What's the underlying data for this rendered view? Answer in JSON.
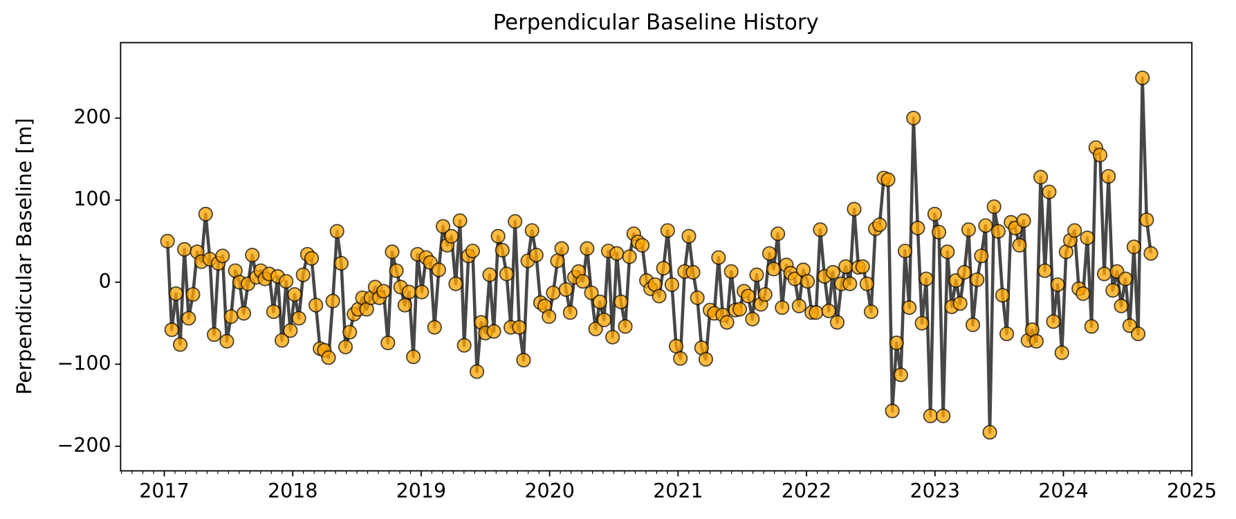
{
  "chart_data": {
    "type": "line",
    "title": "Perpendicular Baseline History",
    "y_label": "Perpendicular Baseline [m]",
    "marker_color": "#ffa500",
    "line_color": "#333333",
    "xlim": [
      2016.66,
      2025
    ],
    "xticks": [
      2017,
      2018,
      2019,
      2020,
      2021,
      2022,
      2023,
      2024,
      2025
    ],
    "ylim": [
      -230,
      292
    ],
    "yticks": [
      {
        "value": -200,
        "label": "−200"
      },
      {
        "value": -100,
        "label": "−100"
      },
      0,
      100,
      200
    ],
    "x": [
      2017.025,
      2017.058,
      2017.091,
      2017.124,
      2017.157,
      2017.19,
      2017.223,
      2017.256,
      2017.289,
      2017.322,
      2017.355,
      2017.388,
      2017.421,
      2017.454,
      2017.487,
      2017.52,
      2017.553,
      2017.586,
      2017.619,
      2017.652,
      2017.685,
      2017.718,
      2017.751,
      2017.784,
      2017.817,
      2017.85,
      2017.883,
      2017.916,
      2017.949,
      2017.982,
      2018.015,
      2018.048,
      2018.081,
      2018.114,
      2018.147,
      2018.18,
      2018.213,
      2018.246,
      2018.279,
      2018.312,
      2018.345,
      2018.378,
      2018.411,
      2018.444,
      2018.477,
      2018.51,
      2018.543,
      2018.576,
      2018.609,
      2018.642,
      2018.675,
      2018.708,
      2018.741,
      2018.774,
      2018.807,
      2018.84,
      2018.873,
      2018.906,
      2018.939,
      2018.972,
      2019.005,
      2019.038,
      2019.071,
      2019.104,
      2019.137,
      2019.17,
      2019.203,
      2019.236,
      2019.269,
      2019.302,
      2019.335,
      2019.368,
      2019.401,
      2019.434,
      2019.467,
      2019.5,
      2019.533,
      2019.566,
      2019.599,
      2019.632,
      2019.665,
      2019.698,
      2019.731,
      2019.764,
      2019.797,
      2019.83,
      2019.863,
      2019.896,
      2019.929,
      2019.962,
      2019.995,
      2020.028,
      2020.061,
      2020.094,
      2020.127,
      2020.16,
      2020.193,
      2020.226,
      2020.259,
      2020.292,
      2020.325,
      2020.358,
      2020.391,
      2020.424,
      2020.457,
      2020.49,
      2020.523,
      2020.556,
      2020.589,
      2020.622,
      2020.655,
      2020.688,
      2020.721,
      2020.754,
      2020.787,
      2020.82,
      2020.853,
      2020.886,
      2020.919,
      2020.952,
      2020.985,
      2021.018,
      2021.051,
      2021.084,
      2021.117,
      2021.15,
      2021.183,
      2021.216,
      2021.249,
      2021.282,
      2021.315,
      2021.348,
      2021.381,
      2021.414,
      2021.447,
      2021.48,
      2021.513,
      2021.546,
      2021.579,
      2021.612,
      2021.645,
      2021.678,
      2021.711,
      2021.744,
      2021.777,
      2021.81,
      2021.843,
      2021.876,
      2021.909,
      2021.942,
      2021.975,
      2022.008,
      2022.041,
      2022.074,
      2022.107,
      2022.14,
      2022.173,
      2022.206,
      2022.239,
      2022.272,
      2022.305,
      2022.338,
      2022.371,
      2022.404,
      2022.437,
      2022.47,
      2022.503,
      2022.536,
      2022.569,
      2022.602,
      2022.635,
      2022.668,
      2022.701,
      2022.734,
      2022.767,
      2022.8,
      2022.833,
      2022.866,
      2022.899,
      2022.932,
      2022.965,
      2022.998,
      2023.031,
      2023.064,
      2023.097,
      2023.13,
      2023.163,
      2023.196,
      2023.229,
      2023.262,
      2023.295,
      2023.328,
      2023.361,
      2023.394,
      2023.427,
      2023.46,
      2023.493,
      2023.526,
      2023.559,
      2023.592,
      2023.625,
      2023.658,
      2023.691,
      2023.724,
      2023.757,
      2023.79,
      2023.823,
      2023.856,
      2023.889,
      2023.922,
      2023.955,
      2023.988,
      2024.021,
      2024.054,
      2024.087,
      2024.12,
      2024.153,
      2024.186,
      2024.219,
      2024.252,
      2024.285,
      2024.318,
      2024.351,
      2024.384,
      2024.417,
      2024.45,
      2024.483,
      2024.516,
      2024.549,
      2024.582,
      2024.615,
      2024.648,
      2024.681
    ],
    "values": [
      50,
      -58,
      -14,
      -76,
      40,
      -44,
      -15,
      37,
      25,
      83,
      28,
      -64,
      23,
      32,
      -72,
      -42,
      14,
      0,
      -38,
      -2,
      33,
      6,
      14,
      4,
      10,
      -36,
      7,
      -71,
      1,
      -59,
      -15,
      -44,
      9,
      34,
      29,
      -28,
      -81,
      -83,
      -92,
      -23,
      62,
      23,
      -79,
      -61,
      -39,
      -33,
      -19,
      -33,
      -19,
      -6,
      -19,
      -11,
      -74,
      37,
      14,
      -6,
      -28,
      -12,
      -91,
      34,
      -12,
      30,
      24,
      -55,
      15,
      68,
      45,
      56,
      -2,
      75,
      -77,
      32,
      38,
      -109,
      -49,
      -62,
      9,
      -60,
      56,
      39,
      10,
      -55,
      74,
      -55,
      -95,
      26,
      63,
      33,
      -25,
      -29,
      -42,
      -13,
      26,
      41,
      -9,
      -37,
      6,
      13,
      1,
      41,
      -13,
      -57,
      -24,
      -46,
      38,
      -67,
      35,
      -24,
      -54,
      31,
      59,
      49,
      45,
      2,
      -8,
      -3,
      -17,
      17,
      63,
      -3,
      -78,
      -93,
      13,
      56,
      12,
      -19,
      -80,
      -94,
      -34,
      -38,
      30,
      -40,
      -49,
      13,
      -34,
      -33,
      -11,
      -17,
      -45,
      9,
      -27,
      -15,
      35,
      16,
      59,
      -31,
      21,
      11,
      4,
      -29,
      15,
      1,
      -37,
      -37,
      64,
      7,
      -35,
      12,
      -49,
      -2,
      19,
      -2,
      89,
      18,
      19,
      -2,
      -36,
      65,
      70,
      127,
      125,
      -157,
      -74,
      -113,
      38,
      -31,
      200,
      66,
      -50,
      4,
      -163,
      83,
      61,
      -163,
      37,
      -30,
      2,
      -26,
      12,
      64,
      -52,
      3,
      32,
      69,
      -183,
      92,
      62,
      -16,
      -63,
      73,
      66,
      45,
      75,
      -71,
      -58,
      -72,
      128,
      14,
      110,
      -48,
      -3,
      -86,
      37,
      51,
      63,
      -8,
      -14,
      54,
      -54,
      164,
      155,
      10,
      129,
      -10,
      13,
      -29,
      4,
      -53,
      43,
      -63,
      249,
      76,
      35
    ]
  }
}
